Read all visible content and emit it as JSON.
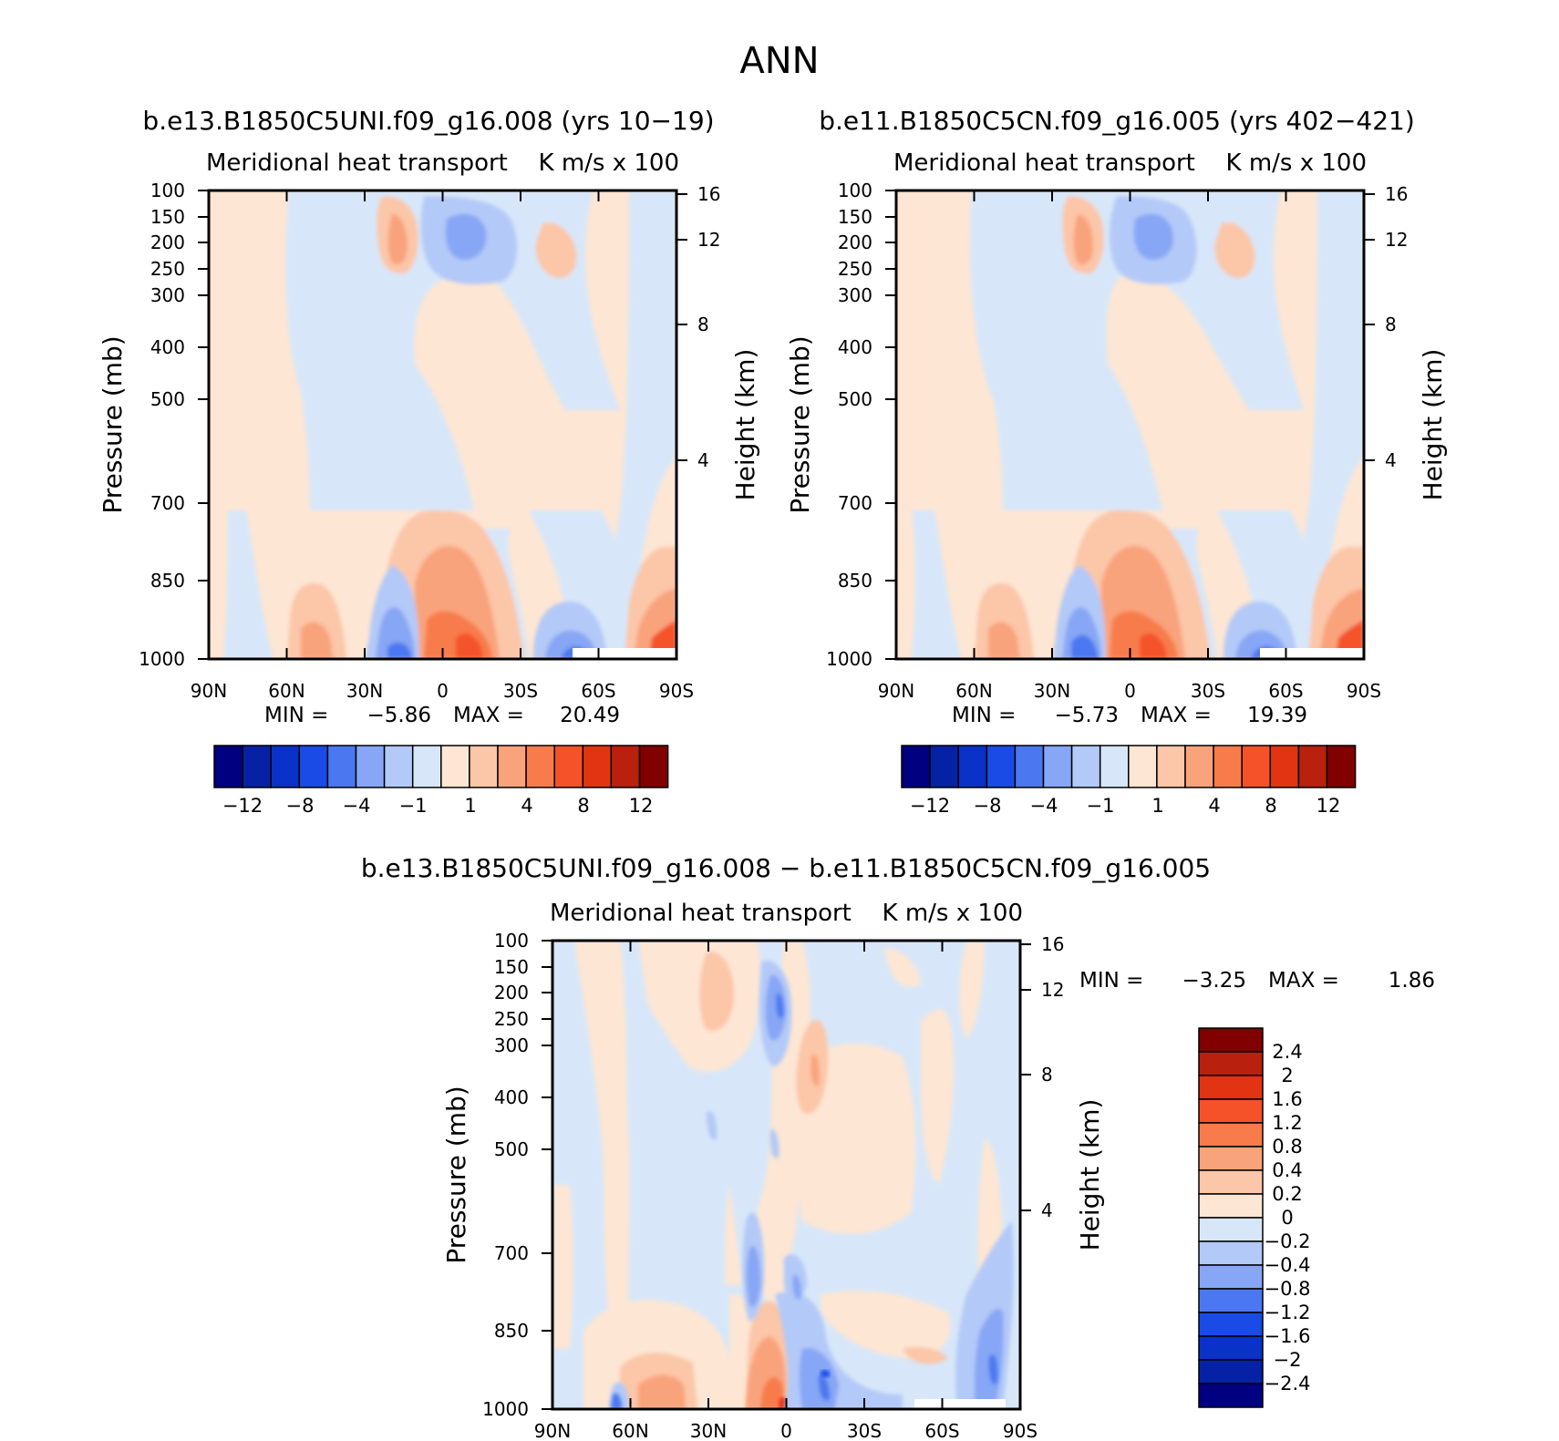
{
  "figure_title": "ANN",
  "colors": {
    "blue_ramp": [
      "#000080",
      "#0522a5",
      "#0a32c8",
      "#1a4be6",
      "#4b78f0",
      "#87a6f5",
      "#b3c9f8",
      "#d7e7f9"
    ],
    "red_ramp": [
      "#fde6d4",
      "#fcc6a8",
      "#f9a37c",
      "#f87c4b",
      "#f5522a",
      "#e23413",
      "#b9200e",
      "#810000"
    ]
  },
  "chart_data": [
    {
      "type": "contour",
      "title": "b.e13.B1850C5UNI.f09_g16.008 (yrs 10−19)",
      "left_title": "Meridional heat transport",
      "right_title": "K m/s x 100",
      "ylabel": "Pressure (mb)",
      "y2label": "Height (km)",
      "x_ticks": [
        "90N",
        "60N",
        "30N",
        "0",
        "30S",
        "60S",
        "90S"
      ],
      "x_range": [
        90,
        -90
      ],
      "y_ticks": [
        "100",
        "150",
        "200",
        "250",
        "300",
        "400",
        "500",
        "700",
        "850",
        "1000"
      ],
      "y_range": [
        100,
        1000
      ],
      "y2_ticks": [
        "16",
        "12",
        "8",
        "4"
      ],
      "min_label": "MIN =",
      "min_value": "−5.86",
      "max_label": "MAX =",
      "max_value": "20.49",
      "colorbar_levels": [
        -12,
        -10,
        -8,
        -6,
        -4,
        -2,
        -1,
        0,
        1,
        2,
        4,
        6,
        8,
        10,
        12
      ],
      "colorbar_labels": [
        "−12",
        "−8",
        "−4",
        "−1",
        "1",
        "4",
        "8",
        "12"
      ]
    },
    {
      "type": "contour",
      "title": "b.e11.B1850C5CN.f09_g16.005 (yrs 402−421)",
      "left_title": "Meridional heat transport",
      "right_title": "K m/s x 100",
      "ylabel": "Pressure (mb)",
      "y2label": "Height (km)",
      "x_ticks": [
        "90N",
        "60N",
        "30N",
        "0",
        "30S",
        "60S",
        "90S"
      ],
      "x_range": [
        90,
        -90
      ],
      "y_ticks": [
        "100",
        "150",
        "200",
        "250",
        "300",
        "400",
        "500",
        "700",
        "850",
        "1000"
      ],
      "y_range": [
        100,
        1000
      ],
      "y2_ticks": [
        "16",
        "12",
        "8",
        "4"
      ],
      "min_label": "MIN =",
      "min_value": "−5.73",
      "max_label": "MAX =",
      "max_value": "19.39",
      "colorbar_levels": [
        -12,
        -10,
        -8,
        -6,
        -4,
        -2,
        -1,
        0,
        1,
        2,
        4,
        6,
        8,
        10,
        12
      ],
      "colorbar_labels": [
        "−12",
        "−8",
        "−4",
        "−1",
        "1",
        "4",
        "8",
        "12"
      ]
    },
    {
      "type": "contour",
      "title": "b.e13.B1850C5UNI.f09_g16.008 − b.e11.B1850C5CN.f09_g16.005",
      "left_title": "Meridional heat transport",
      "right_title": "K m/s x 100",
      "ylabel": "Pressure (mb)",
      "y2label": "Height (km)",
      "x_ticks": [
        "90N",
        "60N",
        "30N",
        "0",
        "30S",
        "60S",
        "90S"
      ],
      "x_range": [
        90,
        -90
      ],
      "y_ticks": [
        "100",
        "150",
        "200",
        "250",
        "300",
        "400",
        "500",
        "700",
        "850",
        "1000"
      ],
      "y_range": [
        100,
        1000
      ],
      "y2_ticks": [
        "16",
        "12",
        "8",
        "4"
      ],
      "min_label": "MIN =",
      "min_value": "−3.25",
      "max_label": "MAX =",
      "max_value": "1.86",
      "colorbar_levels": [
        2.4,
        2,
        1.6,
        1.2,
        0.8,
        0.4,
        0.2,
        0,
        -0.2,
        -0.4,
        -0.8,
        -1.2,
        -1.6,
        -2,
        -2.4
      ],
      "colorbar_labels": [
        "2.4",
        "2",
        "1.6",
        "1.2",
        "0.8",
        "0.4",
        "0.2",
        "0",
        "−0.2",
        "−0.4",
        "−0.8",
        "−1.2",
        "−1.6",
        "−2",
        "−2.4"
      ]
    }
  ]
}
